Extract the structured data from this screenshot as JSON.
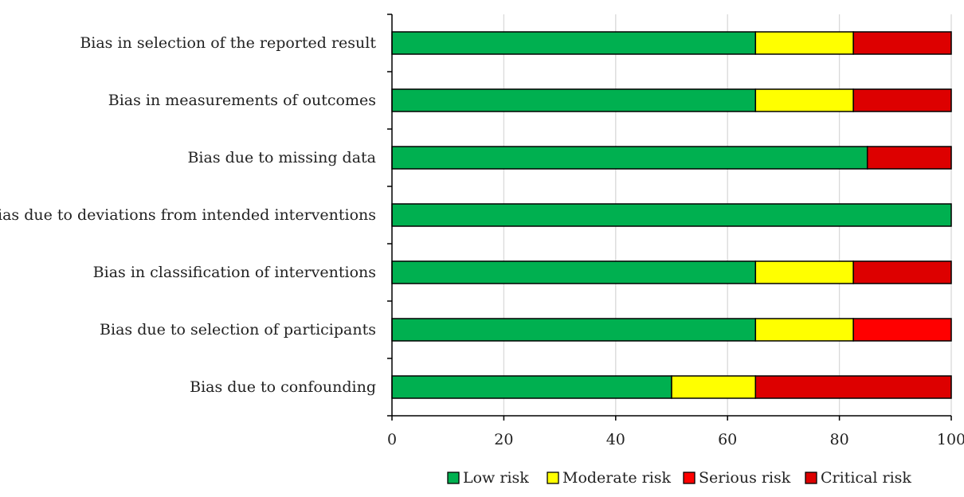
{
  "chart_data": {
    "type": "bar",
    "orientation": "horizontal",
    "stacked": true,
    "categories": [
      "Bias in selection of the reported result",
      "Bias in measurements of outcomes",
      "Bias due to missing data",
      "Bias due to deviations from intended interventions",
      "Bias in classification of interventions",
      "Bias due to selection of participants",
      "Bias due to confounding"
    ],
    "series": [
      {
        "name": "Low risk",
        "color": "#00B050",
        "values": [
          65,
          65,
          85,
          100,
          65,
          65,
          50
        ]
      },
      {
        "name": "Moderate risk",
        "color": "#FFFF00",
        "values": [
          17.5,
          17.5,
          0,
          0,
          17.5,
          17.5,
          15
        ]
      },
      {
        "name": "Serious risk",
        "color": "#FF0000",
        "values": [
          0,
          0,
          0,
          0,
          0,
          17.5,
          0
        ]
      },
      {
        "name": "Critical risk",
        "color": "#DD0000",
        "values": [
          17.5,
          17.5,
          15,
          0,
          17.5,
          0,
          35
        ]
      }
    ],
    "xlim": [
      0,
      100
    ],
    "xticks": [
      "0",
      "20",
      "40",
      "60",
      "80",
      "100"
    ],
    "grid": "vertical",
    "legend_position": "bottom"
  }
}
